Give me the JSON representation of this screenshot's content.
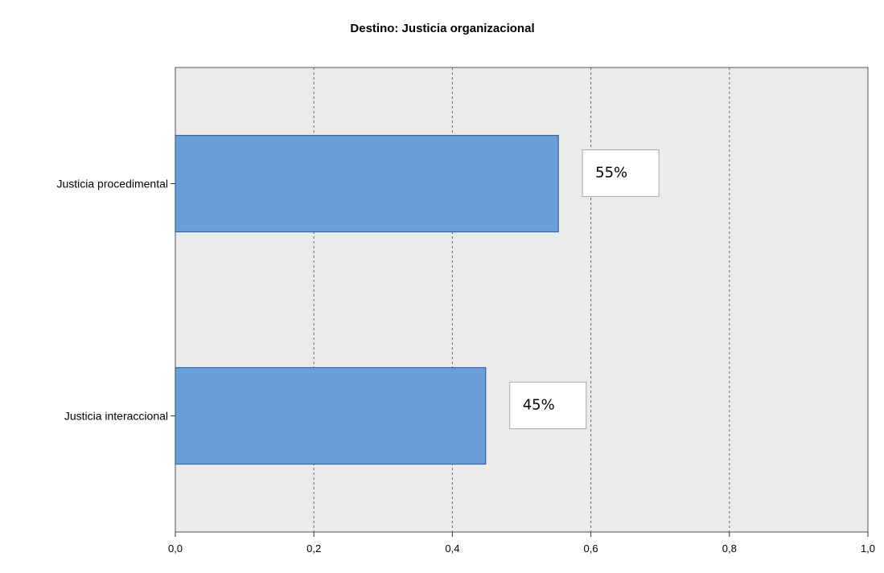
{
  "chart_data": {
    "type": "bar",
    "orientation": "horizontal",
    "title": "Destino: Justicia organizacional",
    "xlabel": "",
    "ylabel": "",
    "categories": [
      "Justicia procedimental",
      "Justicia interaccional"
    ],
    "values": [
      0.553,
      0.448
    ],
    "data_labels": [
      "55%",
      "45%"
    ],
    "xlim": [
      0.0,
      1.0
    ],
    "x_ticks": [
      "0,0",
      "0,2",
      "0,4",
      "0,6",
      "0,8",
      "1,0"
    ],
    "grid": "vertical-dashed",
    "legend": "none",
    "colors": {
      "bar_fill": "#6a9fd8",
      "bar_stroke": "#2f64a8",
      "plot_background": "#ebebeb",
      "grid": "#666666"
    }
  }
}
